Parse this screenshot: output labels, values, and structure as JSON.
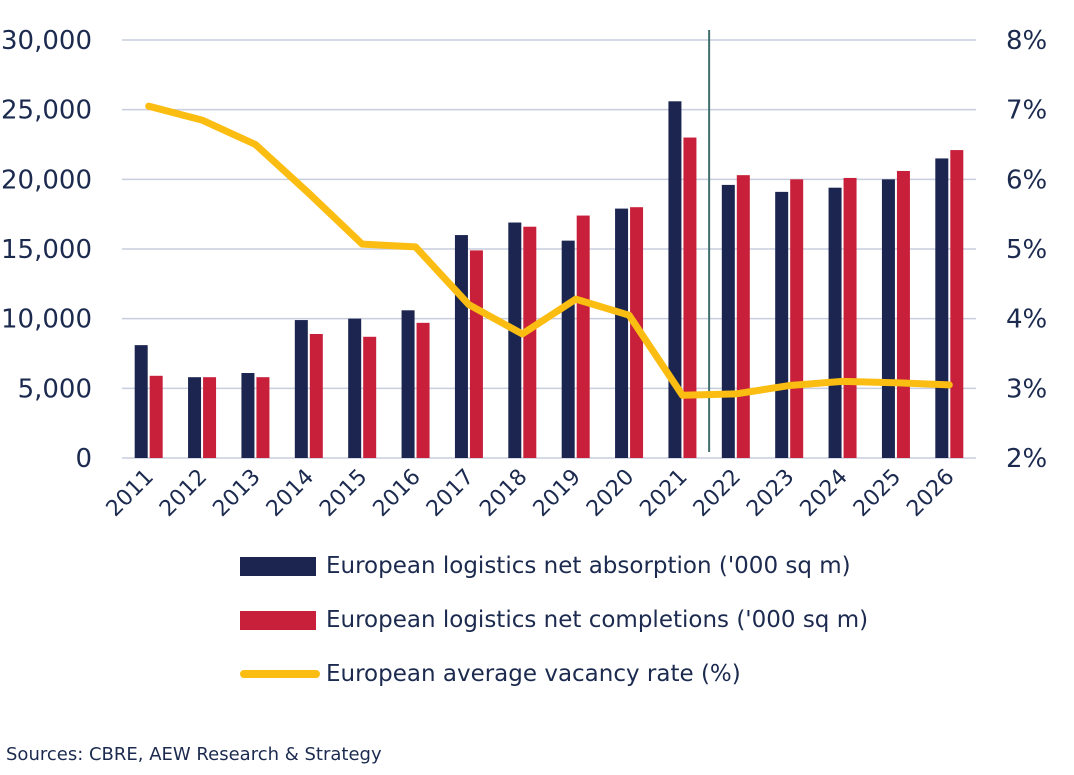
{
  "chart_data": {
    "type": "bar",
    "categories": [
      "2011",
      "2012",
      "2013",
      "2014",
      "2015",
      "2016",
      "2017",
      "2018",
      "2019",
      "2020",
      "2021",
      "2022",
      "2023",
      "2024",
      "2025",
      "2026"
    ],
    "series": [
      {
        "name": "European logistics net absorption ('000 sq m)",
        "kind": "bar",
        "axis": "left",
        "color": "#1b2550",
        "values": [
          8100,
          5800,
          6100,
          9900,
          10000,
          10600,
          16000,
          16900,
          15600,
          17900,
          25600,
          19600,
          19100,
          19400,
          20000,
          21500
        ]
      },
      {
        "name": "European logistics net completions ('000 sq m)",
        "kind": "bar",
        "axis": "left",
        "color": "#c8203a",
        "values": [
          5900,
          5800,
          5800,
          8900,
          8700,
          9700,
          14900,
          16600,
          17400,
          18000,
          23000,
          20300,
          20000,
          20100,
          20600,
          22100
        ]
      },
      {
        "name": "European average vacancy rate (%)",
        "kind": "line",
        "axis": "right",
        "color": "#fbbd11",
        "values": [
          7.05,
          6.85,
          6.5,
          5.8,
          5.07,
          5.03,
          4.2,
          3.78,
          4.28,
          4.05,
          2.9,
          2.92,
          3.04,
          3.1,
          3.08,
          3.05
        ]
      }
    ],
    "y_left": {
      "min": 0,
      "max": 30000,
      "ticks": [
        0,
        5000,
        10000,
        15000,
        20000,
        25000,
        30000
      ],
      "tick_labels": [
        "0",
        "5,000",
        "10,000",
        "15,000",
        "20,000",
        "25,000",
        "30,000"
      ]
    },
    "y_right": {
      "min": 2,
      "max": 8,
      "ticks": [
        2,
        3,
        4,
        5,
        6,
        7,
        8
      ],
      "tick_labels": [
        "2%",
        "3%",
        "4%",
        "5%",
        "6%",
        "7%",
        "8%"
      ]
    },
    "forecast_divider_after": "2021",
    "grid": true,
    "legend_position": "bottom"
  },
  "source_text": "Sources: CBRE, AEW Research & Strategy"
}
